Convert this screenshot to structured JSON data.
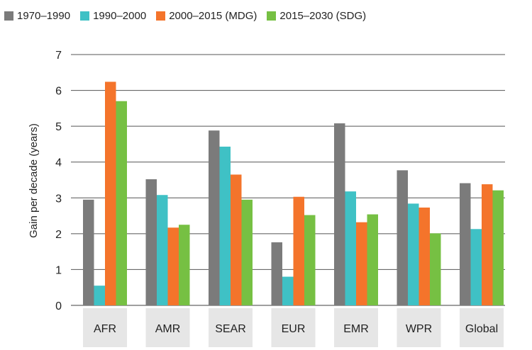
{
  "chart_data": {
    "type": "bar",
    "title": "",
    "xlabel": "",
    "ylabel": "Gain per decade (years)",
    "ylim": [
      0,
      7
    ],
    "yticks": [
      0,
      1,
      2,
      3,
      4,
      5,
      6,
      7
    ],
    "grid": true,
    "legend_position": "top-left",
    "categories": [
      "AFR",
      "AMR",
      "SEAR",
      "EUR",
      "EMR",
      "WPR",
      "Global"
    ],
    "series": [
      {
        "name": "1970–1990",
        "color": "#7b7b7b",
        "values": [
          2.95,
          3.52,
          4.88,
          1.76,
          5.08,
          3.77,
          3.41
        ]
      },
      {
        "name": "1990–2000",
        "color": "#3fc1c5",
        "values": [
          0.55,
          3.08,
          4.43,
          0.8,
          3.18,
          2.84,
          2.13
        ]
      },
      {
        "name": "2000–2015 (MDG)",
        "color": "#f4742b",
        "values": [
          6.24,
          2.17,
          3.65,
          3.03,
          2.32,
          2.73,
          3.38
        ]
      },
      {
        "name": "2015–2030 (SDG)",
        "color": "#76c043",
        "values": [
          5.7,
          2.25,
          2.95,
          2.52,
          2.54,
          2.01,
          3.21
        ]
      }
    ]
  }
}
